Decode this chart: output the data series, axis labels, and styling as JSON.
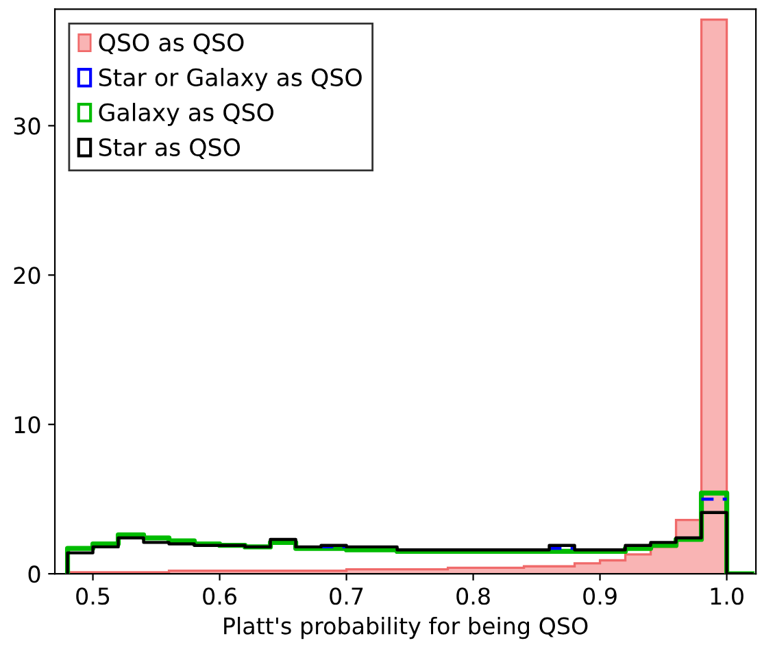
{
  "chart_data": {
    "type": "histogram",
    "xlabel": "Platt's probability for being QSO",
    "bins": [
      0.48,
      0.5,
      0.52,
      0.54,
      0.56,
      0.58,
      0.6,
      0.62,
      0.64,
      0.66,
      0.68,
      0.7,
      0.72,
      0.74,
      0.76,
      0.78,
      0.8,
      0.82,
      0.84,
      0.86,
      0.88,
      0.9,
      0.92,
      0.94,
      0.96,
      0.98,
      1.0,
      1.02
    ],
    "series": [
      {
        "name": "QSO as QSO",
        "color": "#f9b4b4",
        "values": [
          0.1,
          0.1,
          0.1,
          0.1,
          0.2,
          0.2,
          0.2,
          0.2,
          0.2,
          0.2,
          0.2,
          0.3,
          0.3,
          0.3,
          0.3,
          0.4,
          0.4,
          0.4,
          0.5,
          0.5,
          0.7,
          0.9,
          1.3,
          1.8,
          3.6,
          37.1,
          0
        ]
      },
      {
        "name": "Star or Galaxy as QSO",
        "type": "step",
        "line_style": "dashed",
        "color": "#0000ff",
        "x": [
          0.68,
          0.7,
          0.86,
          0.88,
          0.98,
          1.0
        ],
        "values": [
          1.8,
          null,
          1.7,
          null,
          5.0,
          5.0
        ]
      },
      {
        "name": "Galaxy as QSO",
        "type": "step",
        "color": "#00bb00",
        "x": [
          0.48,
          0.48,
          0.5,
          0.52,
          0.54,
          0.56,
          0.58,
          0.6,
          0.62,
          0.64,
          0.66,
          0.68,
          0.7,
          0.72,
          0.74,
          0.76,
          0.78,
          0.8,
          0.82,
          0.84,
          0.86,
          0.88,
          0.9,
          0.92,
          0.94,
          0.96,
          0.98,
          1.0,
          1.02
        ],
        "values": [
          0,
          1.7,
          2.0,
          2.6,
          2.4,
          2.2,
          2.0,
          1.9,
          1.8,
          2.1,
          1.7,
          1.7,
          1.6,
          1.6,
          1.5,
          1.5,
          1.5,
          1.5,
          1.5,
          1.5,
          1.5,
          1.5,
          1.5,
          1.7,
          1.9,
          2.3,
          5.4,
          0,
          0
        ]
      },
      {
        "name": "Star as QSO",
        "type": "step",
        "color": "#000000",
        "x": [
          0.48,
          0.48,
          0.5,
          0.52,
          0.54,
          0.56,
          0.58,
          0.6,
          0.62,
          0.64,
          0.66,
          0.68,
          0.7,
          0.72,
          0.74,
          0.76,
          0.78,
          0.8,
          0.82,
          0.84,
          0.86,
          0.88,
          0.9,
          0.92,
          0.94,
          0.96,
          0.98,
          1.0,
          1.02
        ],
        "values": [
          0,
          1.4,
          1.8,
          2.4,
          2.1,
          2.0,
          1.9,
          1.9,
          1.8,
          2.3,
          1.8,
          1.9,
          1.8,
          1.8,
          1.6,
          1.6,
          1.6,
          1.6,
          1.6,
          1.6,
          1.9,
          1.6,
          1.6,
          1.9,
          2.1,
          2.4,
          4.1,
          0,
          0
        ]
      }
    ],
    "xlim": [
      0.47,
      1.023
    ],
    "ylim": [
      0,
      37.8
    ],
    "xticks": [
      {
        "value": 0.5,
        "label": "0.5"
      },
      {
        "value": 0.6,
        "label": "0.6"
      },
      {
        "value": 0.7,
        "label": "0.7"
      },
      {
        "value": 0.8,
        "label": "0.8"
      },
      {
        "value": 0.9,
        "label": "0.9"
      },
      {
        "value": 1.0,
        "label": "1.0"
      }
    ],
    "yticks": [
      0,
      10,
      20,
      30
    ],
    "grid": false,
    "legend": "top left"
  }
}
